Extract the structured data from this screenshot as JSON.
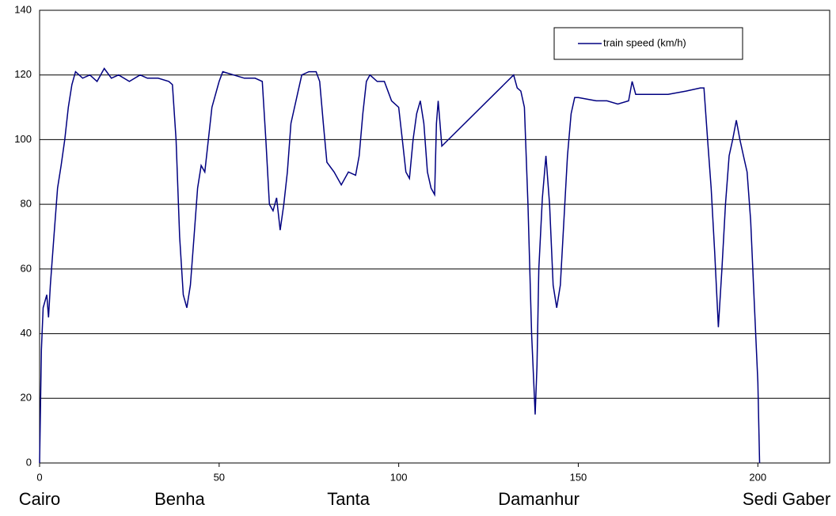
{
  "chart_data": {
    "type": "line",
    "series": [
      {
        "name": "train speed (km/h)",
        "color": "#000080",
        "x": [
          0,
          0.5,
          1,
          2,
          2.5,
          3,
          4,
          5,
          6,
          7,
          8,
          9,
          10,
          12,
          14,
          16,
          18,
          20,
          22,
          25,
          28,
          30,
          33,
          36,
          37,
          38,
          39,
          40,
          41,
          42,
          43,
          44,
          45,
          46,
          47,
          48,
          50,
          51,
          54,
          57,
          60,
          62,
          63,
          64,
          65,
          66,
          67,
          68,
          69,
          70,
          72,
          73,
          75,
          77,
          78,
          79,
          80,
          82,
          84,
          86,
          88,
          89,
          90,
          91,
          92,
          94,
          96,
          98,
          100,
          101,
          102,
          103,
          104,
          105,
          106,
          107,
          108,
          109,
          110,
          110.5,
          111,
          111.5,
          112,
          132,
          133,
          134,
          135,
          136,
          137,
          138,
          138.5,
          139,
          140,
          141,
          142,
          143,
          144,
          145,
          146,
          147,
          148,
          149,
          150,
          155,
          158,
          161,
          164,
          165,
          166,
          170,
          175,
          180,
          184,
          185,
          186,
          187,
          188,
          189,
          190,
          191,
          192,
          193,
          194,
          195,
          196,
          197,
          198,
          199,
          200,
          200.5
        ],
        "values": [
          0,
          35,
          48,
          52,
          45,
          55,
          70,
          85,
          92,
          100,
          110,
          117,
          121,
          119,
          120,
          118,
          122,
          119,
          120,
          118,
          120,
          119,
          119,
          118,
          117,
          100,
          70,
          52,
          48,
          55,
          70,
          85,
          92,
          90,
          100,
          110,
          118,
          121,
          120,
          119,
          119,
          118,
          100,
          80,
          78,
          82,
          72,
          80,
          90,
          105,
          115,
          120,
          121,
          121,
          118,
          105,
          93,
          90,
          86,
          90,
          89,
          95,
          108,
          118,
          120,
          118,
          118,
          112,
          110,
          100,
          90,
          88,
          100,
          108,
          112,
          105,
          90,
          85,
          83,
          105,
          112,
          105,
          98,
          120,
          116,
          115,
          110,
          80,
          40,
          15,
          30,
          60,
          82,
          95,
          80,
          55,
          48,
          55,
          75,
          95,
          108,
          113,
          113,
          112,
          112,
          111,
          112,
          118,
          114,
          114,
          114,
          115,
          116,
          116,
          100,
          85,
          65,
          42,
          60,
          80,
          95,
          100,
          106,
          100,
          95,
          90,
          75,
          50,
          25,
          0
        ]
      }
    ],
    "annotations": [
      {
        "label": "Cairo",
        "x": 0
      },
      {
        "label": "Benha",
        "x": 39
      },
      {
        "label": "Tanta",
        "x": 86
      },
      {
        "label": "Damanhur",
        "x": 139
      },
      {
        "label": "Sedi Gaber",
        "x": 208
      }
    ],
    "xlim": [
      0,
      220
    ],
    "xticks": [
      0,
      50,
      100,
      150,
      200
    ],
    "ylim": [
      0,
      140
    ],
    "yticks": [
      0,
      20,
      40,
      60,
      80,
      100,
      120,
      140
    ],
    "grid": true,
    "legend": "upper right"
  }
}
